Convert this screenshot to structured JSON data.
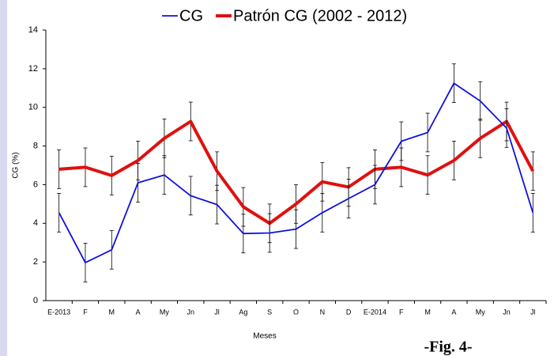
{
  "chart_data": {
    "type": "line",
    "categories": [
      "E-2013",
      "F",
      "M",
      "A",
      "My",
      "Jn",
      "Jl",
      "Ag",
      "S",
      "O",
      "N",
      "D",
      "E-2014",
      "F",
      "M",
      "A",
      "My",
      "Jn",
      "Jl"
    ],
    "series": [
      {
        "name": "CG",
        "color": "#1010e0",
        "values": [
          4.55,
          1.97,
          2.63,
          6.1,
          6.5,
          5.43,
          4.97,
          3.47,
          3.5,
          3.7,
          4.55,
          5.28,
          6.0,
          8.25,
          8.7,
          11.25,
          10.33,
          8.93,
          4.55
        ],
        "errors": [
          1,
          1,
          1,
          1,
          1,
          1,
          1,
          1,
          1,
          1,
          1,
          1,
          1,
          1,
          1,
          1,
          1,
          1,
          1
        ]
      },
      {
        "name": "Patrón CG (2002 - 2012)",
        "color": "#e01010",
        "values": [
          6.8,
          6.9,
          6.47,
          7.25,
          8.4,
          9.27,
          6.7,
          4.85,
          4.0,
          5.0,
          6.15,
          5.88,
          6.8,
          6.9,
          6.5,
          7.25,
          8.4,
          9.27,
          6.7
        ],
        "errors": [
          1,
          1,
          1,
          1,
          1,
          1,
          1,
          1,
          1,
          1,
          1,
          1,
          1,
          1,
          1,
          1,
          1,
          1,
          1
        ]
      }
    ],
    "ylim": [
      0,
      14
    ],
    "yticks": [
      0,
      2,
      4,
      6,
      8,
      10,
      12,
      14
    ],
    "y_label": "CG (%)",
    "x_label": "Meses",
    "legend": "top",
    "grid": false
  },
  "caption": "-Fig. 4-"
}
